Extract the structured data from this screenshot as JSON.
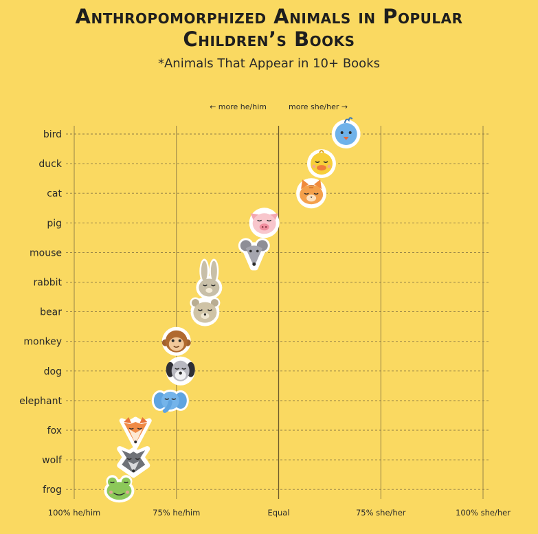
{
  "title_line1": "Anthropomorphized Animals in Popular",
  "title_line2": "Children’s Books",
  "subtitle": "*Animals That Appear in 10+ Books",
  "direction_left": "← more he/him",
  "direction_right": "more she/her →",
  "chart_data": {
    "type": "scatter",
    "xlabel": "",
    "ylabel": "",
    "xlim": [
      -100,
      100
    ],
    "x_ticks": [
      -100,
      -50,
      0,
      50,
      100
    ],
    "x_tick_labels": [
      "100% he/him",
      "75% he/him",
      "Equal",
      "75% she/her",
      "100% she/her"
    ],
    "grid": true,
    "categories": [
      "bird",
      "duck",
      "cat",
      "pig",
      "mouse",
      "rabbit",
      "bear",
      "monkey",
      "dog",
      "elephant",
      "fox",
      "wolf",
      "frog"
    ],
    "values": [
      33,
      21,
      16,
      -7,
      -12,
      -34,
      -36,
      -50,
      -48,
      -53,
      -70,
      -71,
      -78
    ],
    "markers": [
      "bird-face-icon",
      "duck-face-icon",
      "cat-face-icon",
      "pig-face-icon",
      "mouse-face-icon",
      "rabbit-face-icon",
      "bear-face-icon",
      "monkey-face-icon",
      "dog-face-icon",
      "elephant-face-icon",
      "fox-face-icon",
      "wolf-face-icon",
      "frog-face-icon"
    ]
  }
}
